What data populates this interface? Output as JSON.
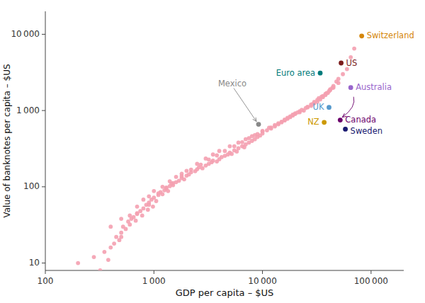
{
  "chart_data": {
    "type": "scatter",
    "xlabel": "GDP per capita – $US",
    "ylabel": "Value of banknotes per capita – $US",
    "log": true,
    "grid": false,
    "xlim": [
      100,
      200000
    ],
    "ylim": [
      8,
      20000
    ],
    "xticks": [
      100,
      {
        "value": 1000,
        "label": "1 000"
      },
      {
        "value": 10000,
        "label": "10 000"
      },
      {
        "value": 100000,
        "label": "100 000"
      }
    ],
    "yticks": [
      10,
      100,
      {
        "value": 1000,
        "label": "1 000"
      },
      {
        "value": 10000,
        "label": "10 000"
      }
    ],
    "series": [
      {
        "color": "#F4A0B0",
        "x": [
          200,
          280,
          320,
          350,
          380,
          400,
          430,
          450,
          480,
          500,
          520,
          550,
          580,
          600,
          620,
          650,
          680,
          700,
          750,
          780,
          800,
          850,
          880,
          900,
          950,
          980,
          1000,
          1050,
          1100,
          1150,
          1200,
          1250,
          1300,
          1350,
          1400,
          1450,
          1500,
          1600,
          1700,
          1800,
          1900,
          2000,
          2100,
          2200,
          2400,
          2500,
          2600,
          2800,
          3000,
          3200,
          3400,
          3500,
          3800,
          4000,
          4200,
          4500,
          4800,
          5000,
          5200,
          5500,
          5800,
          6000,
          6500,
          6800,
          7000,
          7500,
          8000,
          8500,
          9000,
          9500,
          10000,
          11000,
          12000,
          13000,
          14000,
          15000,
          16000,
          17000,
          18000,
          19000,
          20000,
          22000,
          24000,
          26000,
          28000,
          30000,
          32000,
          34000,
          36000,
          38000,
          40000,
          42000,
          45000,
          48000,
          50000,
          55000,
          60000,
          65000,
          70000,
          400,
          500,
          600,
          700,
          800,
          900,
          1000,
          1200,
          1400,
          1600,
          1800,
          2000,
          2500,
          3000,
          3500,
          4000,
          5000,
          6000,
          7000,
          8000,
          9000,
          10000,
          12000,
          14000,
          16000,
          18000,
          20000,
          22000,
          25000,
          28000,
          30000,
          33000,
          36000,
          39000,
          42000,
          45000,
          50000,
          500,
          700,
          900,
          1100,
          1300,
          1500,
          1800,
          2200,
          2700,
          3200,
          3800,
          4500,
          5500,
          6500,
          7500,
          8500,
          10000,
          11500,
          13000,
          15000,
          17000,
          19000,
          21000,
          23000,
          26000,
          29000,
          32000,
          35000,
          38000,
          41000,
          44000
        ],
        "values": [
          10,
          12,
          8,
          14,
          11,
          16,
          18,
          22,
          20,
          25,
          30,
          28,
          35,
          32,
          38,
          40,
          36,
          44,
          48,
          42,
          52,
          58,
          50,
          62,
          68,
          55,
          72,
          65,
          78,
          85,
          80,
          90,
          95,
          88,
          102,
          110,
          105,
          115,
          120,
          130,
          125,
          140,
          145,
          155,
          160,
          170,
          180,
          175,
          190,
          200,
          210,
          220,
          215,
          230,
          245,
          255,
          265,
          280,
          270,
          300,
          290,
          320,
          340,
          330,
          360,
          380,
          400,
          420,
          450,
          470,
          500,
          550,
          580,
          620,
          660,
          700,
          740,
          780,
          820,
          860,
          900,
          950,
          1000,
          1100,
          1150,
          1250,
          1300,
          1400,
          1500,
          1600,
          1700,
          1900,
          2100,
          2400,
          2600,
          3000,
          3500,
          5000,
          6500,
          30,
          38,
          42,
          55,
          68,
          75,
          88,
          100,
          118,
          135,
          148,
          162,
          200,
          235,
          265,
          295,
          340,
          380,
          420,
          460,
          490,
          530,
          600,
          680,
          760,
          840,
          920,
          980,
          1080,
          1200,
          1300,
          1450,
          1550,
          1700,
          1850,
          2000,
          2300,
          22,
          45,
          58,
          82,
          98,
          112,
          138,
          168,
          195,
          228,
          258,
          295,
          340,
          385,
          435,
          475,
          540,
          595,
          645,
          715,
          805,
          885,
          945,
          1020,
          1120,
          1220,
          1380,
          1520,
          1650,
          1800,
          1980
        ]
      },
      {
        "name": "Switzerland",
        "color": "#D4860A",
        "x": [
          82000
        ],
        "values": [
          9500
        ]
      },
      {
        "name": "US",
        "color": "#7B1C1C",
        "x": [
          53000
        ],
        "values": [
          4200
        ]
      },
      {
        "name": "Euro area",
        "color": "#007B7B",
        "x": [
          34000
        ],
        "values": [
          3100
        ]
      },
      {
        "name": "Australia",
        "color": "#9966CC",
        "x": [
          65000
        ],
        "values": [
          2000
        ]
      },
      {
        "name": "Canada",
        "color": "#6B006B",
        "x": [
          52000
        ],
        "values": [
          750
        ]
      },
      {
        "name": "UK",
        "color": "#5599CC",
        "x": [
          41000
        ],
        "values": [
          1100
        ]
      },
      {
        "name": "NZ",
        "color": "#CC9900",
        "x": [
          37000
        ],
        "values": [
          700
        ]
      },
      {
        "name": "Sweden",
        "color": "#191970",
        "x": [
          58000
        ],
        "values": [
          570
        ]
      },
      {
        "name": "Mexico",
        "color": "#888888",
        "x": [
          9200
        ],
        "values": [
          660
        ]
      }
    ]
  }
}
